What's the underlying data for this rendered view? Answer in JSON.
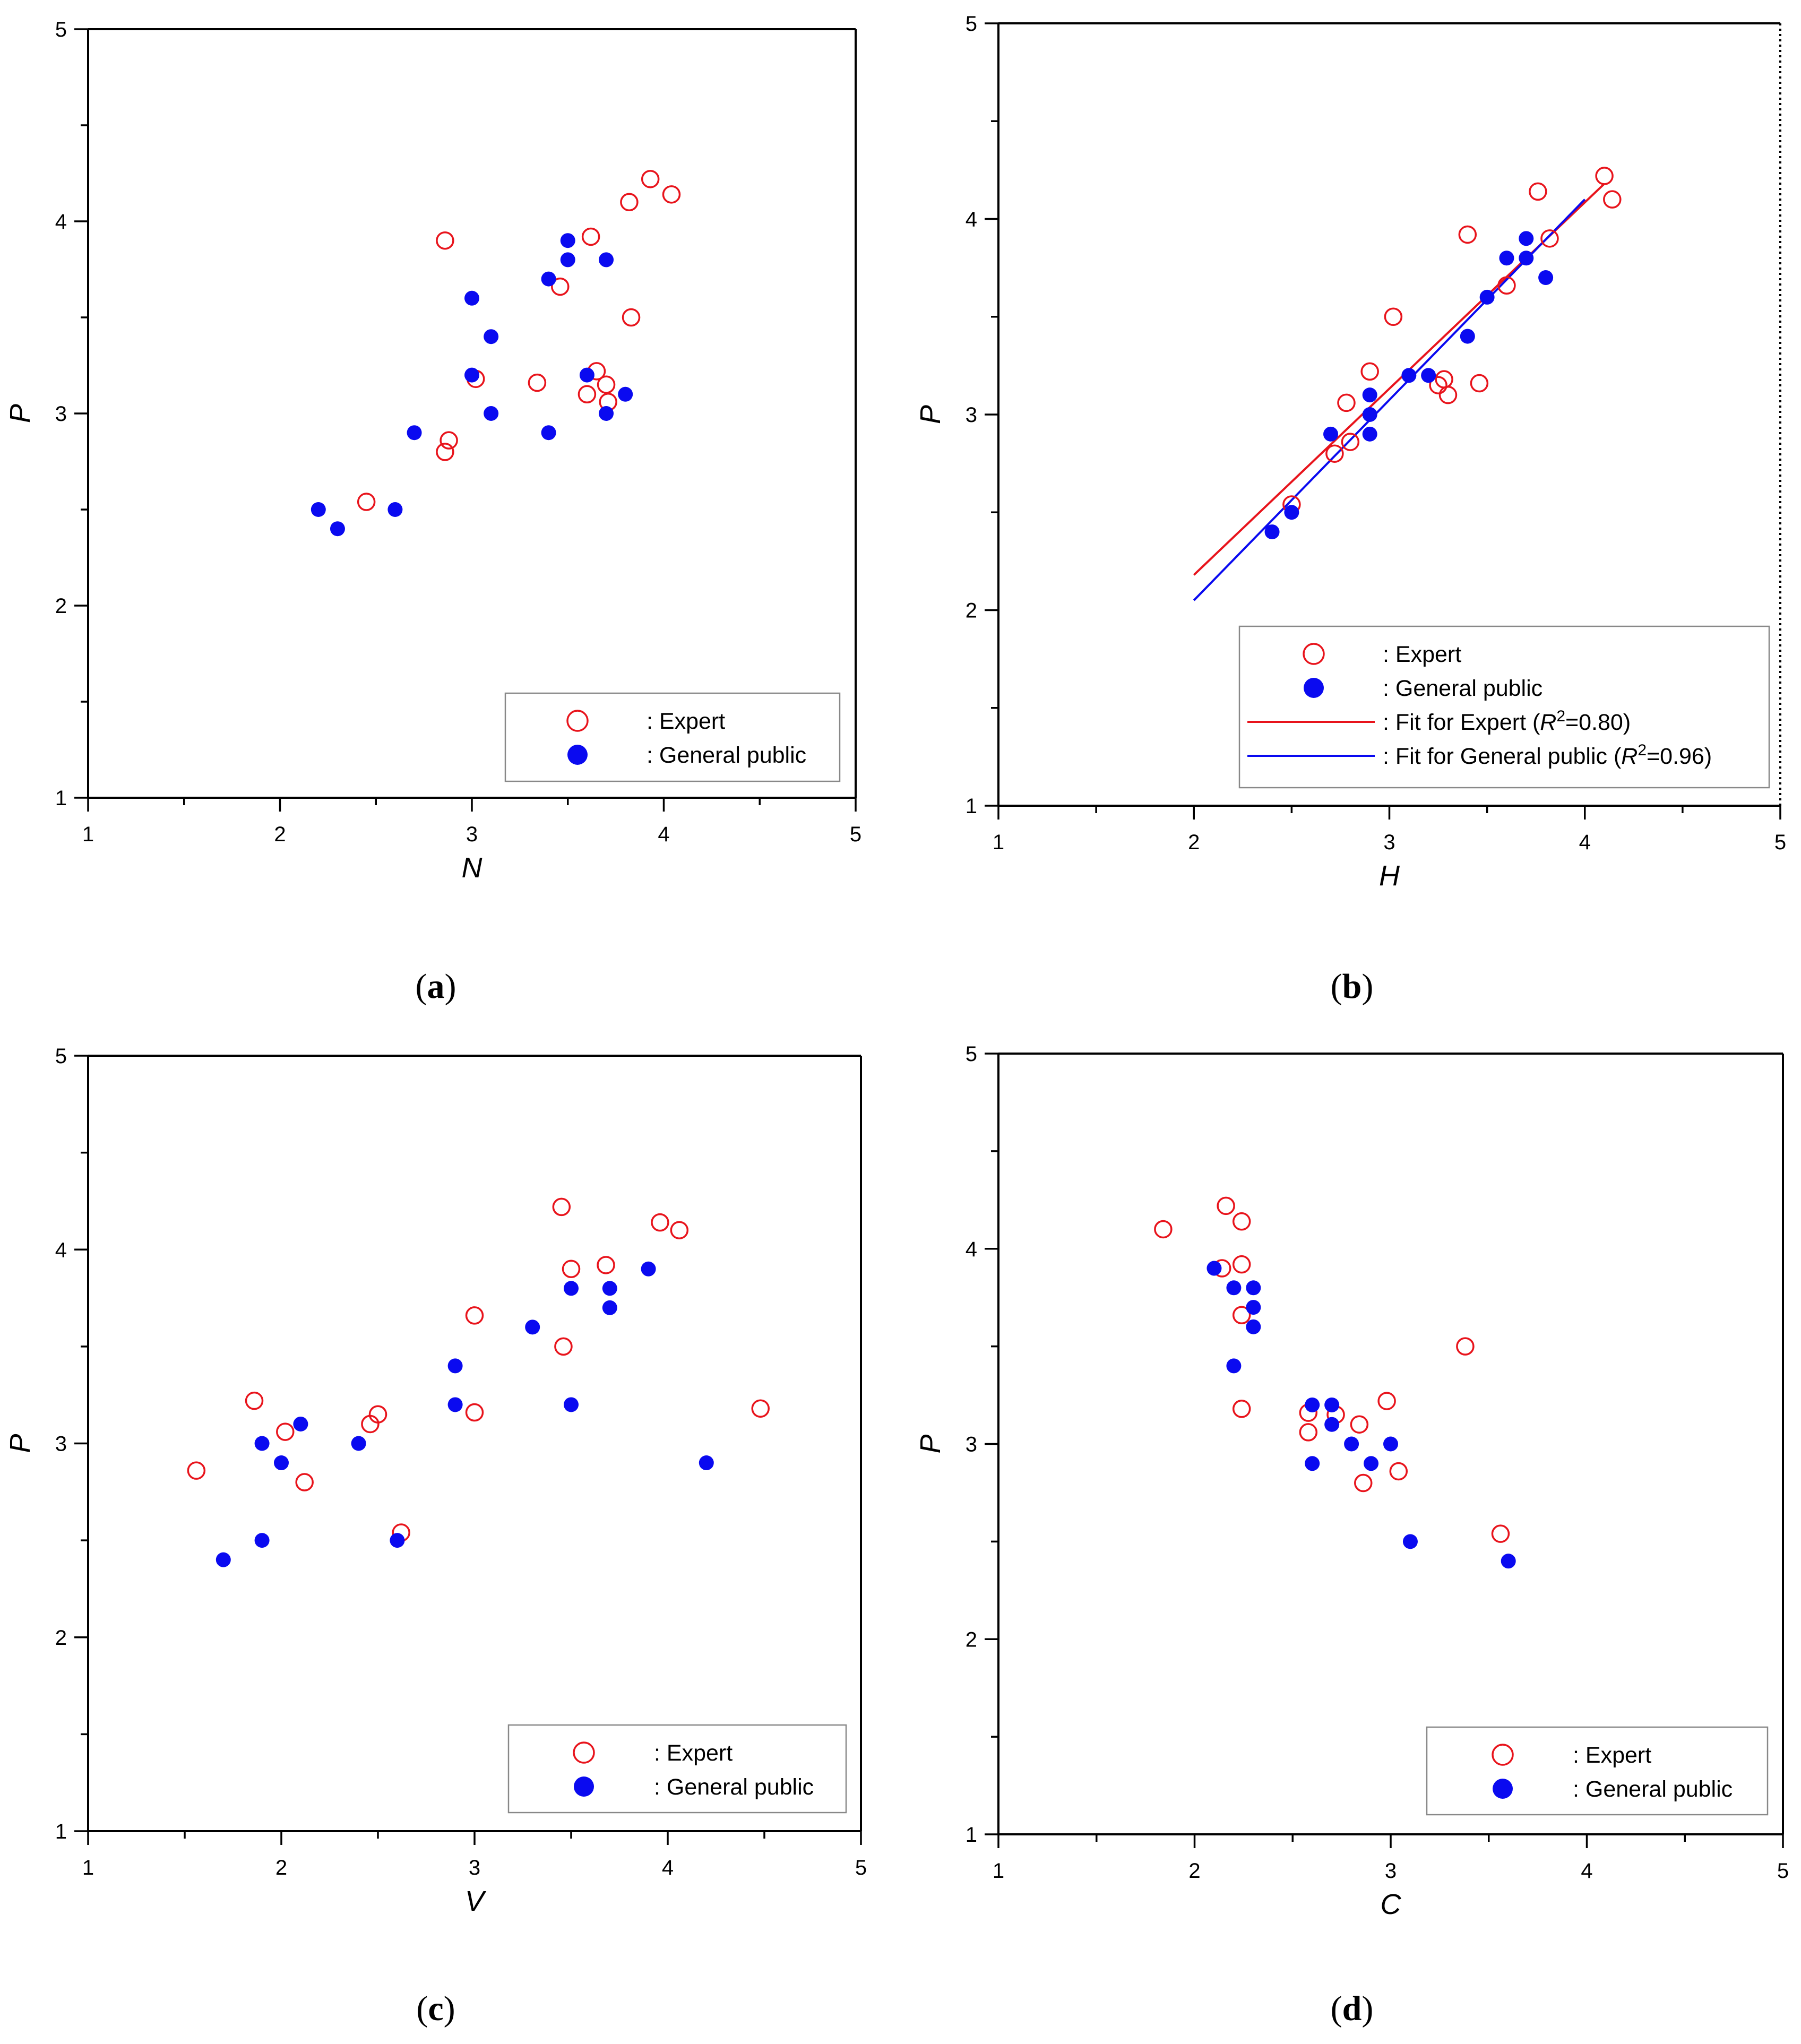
{
  "colors": {
    "expert": "#e8141c",
    "general": "#0a0af0",
    "axis": "#000000"
  },
  "chart_data": [
    {
      "type": "scatter",
      "panel_label": "a",
      "xlabel": "N",
      "ylabel": "P",
      "xlim": [
        1,
        5
      ],
      "ylim": [
        1,
        5
      ],
      "xticks": [
        "1",
        "2",
        "3",
        "4",
        "5"
      ],
      "yticks": [
        "1",
        "2",
        "3",
        "4",
        "5"
      ],
      "legend_position": "bottom-right",
      "legend": [
        "Expert",
        "General public"
      ],
      "series": [
        {
          "name": "Expert",
          "marker": "open-circle",
          "points": [
            [
              2.45,
              2.54
            ],
            [
              2.86,
              3.9
            ],
            [
              2.86,
              2.8
            ],
            [
              2.88,
              2.86
            ],
            [
              3.02,
              3.18
            ],
            [
              3.34,
              3.16
            ],
            [
              3.46,
              3.66
            ],
            [
              3.6,
              3.1
            ],
            [
              3.62,
              3.92
            ],
            [
              3.65,
              3.22
            ],
            [
              3.7,
              3.15
            ],
            [
              3.71,
              3.06
            ],
            [
              3.82,
              4.1
            ],
            [
              3.83,
              3.5
            ],
            [
              3.93,
              4.22
            ],
            [
              4.04,
              4.14
            ]
          ]
        },
        {
          "name": "General public",
          "marker": "filled-circle",
          "points": [
            [
              2.2,
              2.5
            ],
            [
              2.3,
              2.4
            ],
            [
              2.6,
              2.5
            ],
            [
              2.7,
              2.9
            ],
            [
              3.0,
              3.6
            ],
            [
              3.0,
              3.2
            ],
            [
              3.1,
              3.4
            ],
            [
              3.1,
              3.0
            ],
            [
              3.4,
              3.7
            ],
            [
              3.4,
              2.9
            ],
            [
              3.5,
              3.9
            ],
            [
              3.5,
              3.8
            ],
            [
              3.6,
              3.2
            ],
            [
              3.7,
              3.8
            ],
            [
              3.7,
              3.0
            ],
            [
              3.8,
              3.1
            ]
          ]
        }
      ]
    },
    {
      "type": "scatter",
      "panel_label": "b",
      "xlabel": "H",
      "ylabel": "P",
      "xlim": [
        1,
        5
      ],
      "ylim": [
        1,
        5
      ],
      "xticks": [
        "1",
        "2",
        "3",
        "4",
        "5"
      ],
      "yticks": [
        "1",
        "2",
        "3",
        "4",
        "5"
      ],
      "legend_position": "bottom-right",
      "legend": [
        "Expert",
        "General public",
        "Fit for Expert (R²=0.80)",
        "Fit for General public (R²=0.96)"
      ],
      "series": [
        {
          "name": "Expert",
          "marker": "open-circle",
          "points": [
            [
              2.5,
              2.54
            ],
            [
              2.72,
              2.8
            ],
            [
              2.78,
              3.06
            ],
            [
              2.8,
              2.86
            ],
            [
              2.9,
              3.22
            ],
            [
              3.02,
              3.5
            ],
            [
              3.25,
              3.15
            ],
            [
              3.28,
              3.18
            ],
            [
              3.3,
              3.1
            ],
            [
              3.4,
              3.92
            ],
            [
              3.46,
              3.16
            ],
            [
              3.6,
              3.66
            ],
            [
              3.76,
              4.14
            ],
            [
              3.82,
              3.9
            ],
            [
              4.1,
              4.22
            ],
            [
              4.14,
              4.1
            ]
          ]
        },
        {
          "name": "General public",
          "marker": "filled-circle",
          "points": [
            [
              2.4,
              2.4
            ],
            [
              2.5,
              2.5
            ],
            [
              2.7,
              2.9
            ],
            [
              2.9,
              3.1
            ],
            [
              2.9,
              3.0
            ],
            [
              2.9,
              2.9
            ],
            [
              3.1,
              3.2
            ],
            [
              3.2,
              3.2
            ],
            [
              3.4,
              3.4
            ],
            [
              3.5,
              3.6
            ],
            [
              3.6,
              3.8
            ],
            [
              3.7,
              3.9
            ],
            [
              3.7,
              3.8
            ],
            [
              3.8,
              3.7
            ]
          ]
        }
      ],
      "fits": [
        {
          "name": "Fit for Expert",
          "r2": "0.80",
          "x": [
            2.0,
            4.1
          ],
          "y": [
            2.18,
            4.18
          ]
        },
        {
          "name": "Fit for General public",
          "r2": "0.96",
          "x": [
            2.0,
            4.0
          ],
          "y": [
            2.05,
            4.1
          ]
        }
      ]
    },
    {
      "type": "scatter",
      "panel_label": "c",
      "xlabel": "V",
      "ylabel": "P",
      "xlim": [
        1,
        5
      ],
      "ylim": [
        1,
        5
      ],
      "xticks": [
        "1",
        "2",
        "3",
        "4",
        "5"
      ],
      "yticks": [
        "1",
        "2",
        "3",
        "4",
        "5"
      ],
      "legend_position": "bottom-right",
      "legend": [
        "Expert",
        "General public"
      ],
      "series": [
        {
          "name": "Expert",
          "marker": "open-circle",
          "points": [
            [
              1.56,
              2.86
            ],
            [
              1.86,
              3.22
            ],
            [
              2.02,
              3.06
            ],
            [
              2.12,
              2.8
            ],
            [
              2.46,
              3.1
            ],
            [
              2.5,
              3.15
            ],
            [
              2.62,
              2.54
            ],
            [
              3.0,
              3.66
            ],
            [
              3.0,
              3.16
            ],
            [
              3.45,
              4.22
            ],
            [
              3.46,
              3.5
            ],
            [
              3.5,
              3.9
            ],
            [
              3.68,
              3.92
            ],
            [
              3.96,
              4.14
            ],
            [
              4.06,
              4.1
            ],
            [
              4.48,
              3.18
            ]
          ]
        },
        {
          "name": "General public",
          "marker": "filled-circle",
          "points": [
            [
              1.7,
              2.4
            ],
            [
              1.9,
              3.0
            ],
            [
              1.9,
              2.5
            ],
            [
              2.0,
              2.9
            ],
            [
              2.1,
              3.1
            ],
            [
              2.4,
              3.0
            ],
            [
              2.6,
              2.5
            ],
            [
              2.9,
              3.4
            ],
            [
              2.9,
              3.2
            ],
            [
              3.3,
              3.6
            ],
            [
              3.5,
              3.8
            ],
            [
              3.5,
              3.2
            ],
            [
              3.7,
              3.8
            ],
            [
              3.7,
              3.7
            ],
            [
              3.9,
              3.9
            ],
            [
              4.2,
              2.9
            ]
          ]
        }
      ]
    },
    {
      "type": "scatter",
      "panel_label": "d",
      "xlabel": "C",
      "ylabel": "P",
      "xlim": [
        1,
        5
      ],
      "ylim": [
        1,
        5
      ],
      "xticks": [
        "1",
        "2",
        "3",
        "4",
        "5"
      ],
      "yticks": [
        "1",
        "2",
        "3",
        "4",
        "5"
      ],
      "legend_position": "bottom-right",
      "legend": [
        "Expert",
        "General public"
      ],
      "series": [
        {
          "name": "Expert",
          "marker": "open-circle",
          "points": [
            [
              1.84,
              4.1
            ],
            [
              2.14,
              3.9
            ],
            [
              2.16,
              4.22
            ],
            [
              2.24,
              4.14
            ],
            [
              2.24,
              3.92
            ],
            [
              2.24,
              3.66
            ],
            [
              2.24,
              3.18
            ],
            [
              2.58,
              3.16
            ],
            [
              2.58,
              3.06
            ],
            [
              2.72,
              3.15
            ],
            [
              2.84,
              3.1
            ],
            [
              2.86,
              2.8
            ],
            [
              2.98,
              3.22
            ],
            [
              3.04,
              2.86
            ],
            [
              3.38,
              3.5
            ],
            [
              3.56,
              2.54
            ]
          ]
        },
        {
          "name": "General public",
          "marker": "filled-circle",
          "points": [
            [
              2.1,
              3.9
            ],
            [
              2.2,
              3.8
            ],
            [
              2.2,
              3.4
            ],
            [
              2.3,
              3.8
            ],
            [
              2.3,
              3.7
            ],
            [
              2.3,
              3.6
            ],
            [
              2.6,
              3.2
            ],
            [
              2.6,
              2.9
            ],
            [
              2.7,
              3.2
            ],
            [
              2.7,
              3.1
            ],
            [
              2.8,
              3.0
            ],
            [
              2.9,
              2.9
            ],
            [
              3.0,
              3.0
            ],
            [
              3.1,
              2.5
            ],
            [
              3.6,
              2.4
            ]
          ]
        }
      ]
    }
  ]
}
